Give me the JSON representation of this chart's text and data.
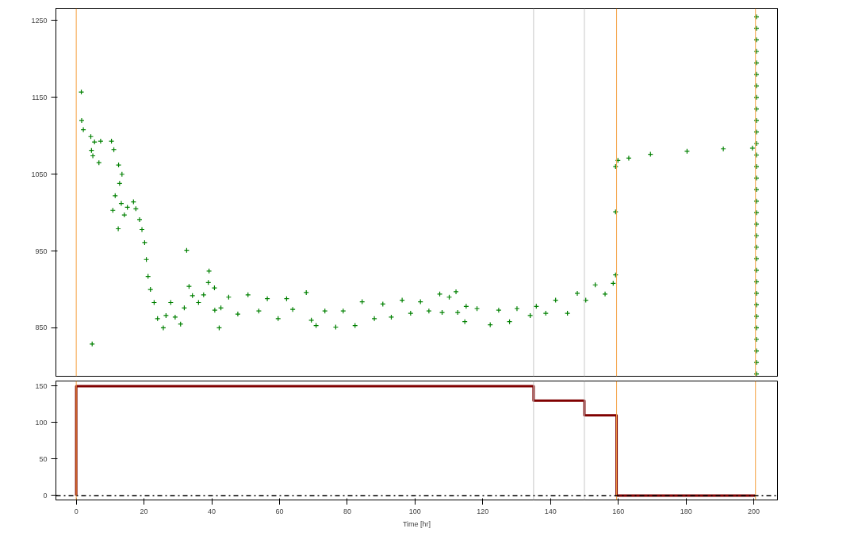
{
  "chart_data": [
    {
      "type": "scatter",
      "marker": "cross",
      "grid": false,
      "tick_labels": "y",
      "xlim": [
        -6,
        207
      ],
      "ylim": [
        787,
        1266
      ],
      "yticks": [
        850,
        950,
        1050,
        1150,
        1250
      ],
      "series": [
        {
          "color": "#008000",
          "x": [
            1.5,
            1.6,
            2.1,
            4.3,
            4.5,
            4.7,
            4.9,
            5.4,
            6.7,
            7.2,
            10.4,
            11.1,
            12.5,
            13.5,
            12.8,
            11.5,
            10.8,
            12.4,
            13.3,
            14.2,
            15.1,
            16.9,
            17.6,
            18.7,
            19.4,
            20.2,
            20.7,
            21.2,
            21.9,
            23.0,
            24.0,
            25.7,
            26.5,
            27.9,
            29.2,
            30.8,
            31.9,
            32.6,
            33.3,
            34.3,
            36.1,
            37.6,
            39.0,
            39.2,
            40.8,
            40.9,
            42.2,
            42.7,
            45.0,
            47.7,
            50.7,
            53.9,
            56.4,
            59.6,
            62.1,
            63.9,
            67.9,
            69.4,
            70.8,
            73.4,
            76.6,
            78.8,
            82.3,
            84.4,
            88.0,
            90.5,
            93.0,
            96.2,
            98.7,
            101.6,
            104.1,
            107.3,
            108.0,
            110.1,
            112.1,
            112.6,
            114.7,
            115.1,
            118.3,
            122.2,
            124.7,
            127.9,
            130.1,
            134.0,
            135.8,
            138.6,
            141.5,
            145.0,
            147.9,
            150.4,
            153.2,
            156.1,
            158.5,
            159.2,
            159.2,
            159.2,
            159.9,
            163.1,
            169.5,
            180.3,
            191.0,
            199.6,
            200.8,
            200.8,
            200.8,
            200.8,
            200.8,
            200.8,
            200.8,
            200.8,
            200.8,
            200.8,
            200.8,
            200.8,
            200.8,
            200.8,
            200.8,
            200.8,
            200.8,
            200.8,
            200.8,
            200.8,
            200.8,
            200.8,
            200.8,
            200.8,
            200.8,
            200.8,
            200.8,
            200.8,
            200.8,
            200.8,
            200.8,
            200.8
          ],
          "values": [
            1157,
            1120,
            1108,
            1099,
            1081,
            829,
            1074,
            1092,
            1065,
            1093,
            1093,
            1082,
            1062,
            1050,
            1038,
            1022,
            1003,
            979,
            1012,
            997,
            1007,
            1014,
            1005,
            991,
            978,
            961,
            939,
            917,
            900,
            883,
            862,
            850,
            866,
            883,
            864,
            855,
            876,
            951,
            904,
            892,
            883,
            893,
            909,
            924,
            902,
            873,
            850,
            876,
            890,
            868,
            893,
            872,
            888,
            862,
            888,
            874,
            896,
            860,
            853,
            872,
            851,
            872,
            853,
            884,
            862,
            881,
            864,
            886,
            869,
            884,
            872,
            894,
            870,
            890,
            897,
            870,
            858,
            878,
            875,
            854,
            873,
            858,
            875,
            866,
            878,
            869,
            886,
            869,
            895,
            886,
            906,
            894,
            908,
            919,
            1001,
            1060,
            1068,
            1071,
            1076,
            1080,
            1083,
            1084,
            790,
            805,
            820,
            835,
            850,
            865,
            880,
            895,
            910,
            925,
            940,
            955,
            970,
            985,
            1000,
            1015,
            1030,
            1045,
            1060,
            1075,
            1090,
            1105,
            1120,
            1135,
            1150,
            1165,
            1180,
            1195,
            1210,
            1225,
            1240,
            1255
          ]
        }
      ],
      "ref_lines": [
        {
          "axis": "x",
          "value": 0,
          "color": "#f5a040"
        },
        {
          "axis": "x",
          "value": 135,
          "color": "#c8c8c8"
        },
        {
          "axis": "x",
          "value": 150,
          "color": "#c8c8c8"
        },
        {
          "axis": "x",
          "value": 159.5,
          "color": "#f5a040"
        },
        {
          "axis": "x",
          "value": 200.5,
          "color": "#f5a040"
        }
      ]
    },
    {
      "type": "step",
      "grid": false,
      "xlabel": "Time [hr]",
      "xlim": [
        -6,
        207
      ],
      "xticks": [
        0,
        20,
        40,
        60,
        80,
        100,
        120,
        140,
        160,
        180,
        200
      ],
      "ylim": [
        -6,
        157
      ],
      "yticks": [
        0,
        50,
        100,
        150
      ],
      "series": [
        {
          "color": "#800000",
          "x": [
            0,
            0,
            135,
            150,
            159.5,
            200.5
          ],
          "values": [
            0,
            150,
            130,
            110,
            0,
            0
          ]
        }
      ],
      "ref_lines": [
        {
          "axis": "x",
          "value": 0,
          "color": "#f5a040"
        },
        {
          "axis": "x",
          "value": 135,
          "color": "#c8c8c8"
        },
        {
          "axis": "x",
          "value": 150,
          "color": "#c8c8c8"
        },
        {
          "axis": "x",
          "value": 159.5,
          "color": "#f5a040"
        },
        {
          "axis": "x",
          "value": 200.5,
          "color": "#f5a040"
        },
        {
          "axis": "y",
          "value": 0,
          "color": "#000000",
          "line_style": "dashdot"
        }
      ]
    }
  ]
}
